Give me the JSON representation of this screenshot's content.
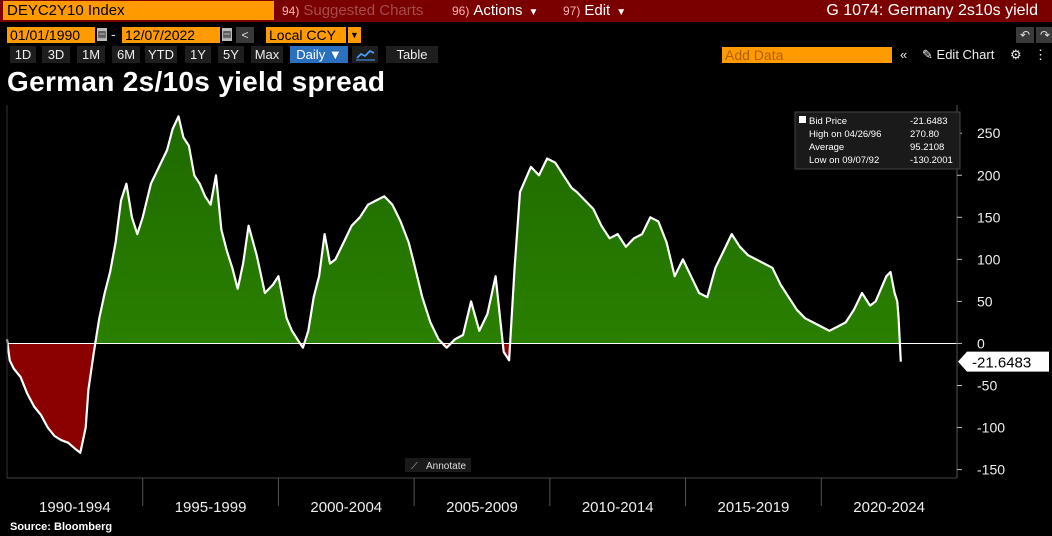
{
  "toolbar": {
    "security": "DEYC2Y10 Index",
    "suggested_num": "94)",
    "suggested_label": "Suggested Charts",
    "actions_num": "96)",
    "actions_label": "Actions",
    "edit_num": "97)",
    "edit_label": "Edit",
    "page_title": "G 1074: Germany 2s10s yield",
    "start_date": "01/01/1990",
    "end_date": "12/07/2022",
    "currency": "Local CCY",
    "ranges": [
      "1D",
      "3D",
      "1M",
      "6M",
      "YTD",
      "1Y",
      "5Y",
      "Max"
    ],
    "frequency": "Daily",
    "table_label": "Table",
    "add_data_placeholder": "Add Data",
    "edit_chart_label": "Edit Chart"
  },
  "title": "German 2s/10s yield spread",
  "source": "Source: Bloomberg",
  "annotate_label": "Annotate",
  "colors": {
    "positive_fill": "#2f8a00",
    "negative_fill": "#8b0000",
    "line": "#ffffff",
    "toolbar_orange": "#ff9b00",
    "toolbar_red": "#7a0000"
  },
  "legend": {
    "rows": [
      {
        "label": "Bid Price",
        "value": "-21.6483"
      },
      {
        "label": "High on 04/26/96",
        "value": "270.80"
      },
      {
        "label": "Average",
        "value": "95.2108"
      },
      {
        "label": "Low on 09/07/92",
        "value": "-130.2001"
      }
    ]
  },
  "chart_data": {
    "type": "area",
    "title": "German 2s/10s yield spread",
    "series": [
      {
        "name": "Bid Price",
        "x": [
          1990.0,
          1990.1,
          1990.25,
          1990.5,
          1990.75,
          1991.0,
          1991.25,
          1991.5,
          1991.75,
          1992.0,
          1992.25,
          1992.5,
          1992.7,
          1992.9,
          1993.0,
          1993.2,
          1993.4,
          1993.6,
          1993.8,
          1994.0,
          1994.2,
          1994.4,
          1994.6,
          1994.8,
          1995.0,
          1995.3,
          1995.6,
          1995.9,
          1996.1,
          1996.32,
          1996.5,
          1996.7,
          1996.9,
          1997.1,
          1997.3,
          1997.5,
          1997.7,
          1997.9,
          1998.1,
          1998.3,
          1998.5,
          1998.7,
          1998.9,
          1999.2,
          1999.5,
          1999.8,
          2000.0,
          2000.3,
          2000.5,
          2000.7,
          2000.9,
          2001.1,
          2001.3,
          2001.5,
          2001.7,
          2001.9,
          2002.1,
          2002.4,
          2002.7,
          2003.0,
          2003.3,
          2003.6,
          2003.9,
          2004.2,
          2004.5,
          2004.8,
          2005.0,
          2005.3,
          2005.6,
          2005.9,
          2006.2,
          2006.5,
          2006.8,
          2007.1,
          2007.4,
          2007.7,
          2008.0,
          2008.3,
          2008.5,
          2008.7,
          2008.9,
          2009.1,
          2009.3,
          2009.6,
          2009.9,
          2010.2,
          2010.5,
          2010.8,
          2011.0,
          2011.3,
          2011.6,
          2011.9,
          2012.2,
          2012.5,
          2012.8,
          2013.1,
          2013.4,
          2013.7,
          2014.0,
          2014.3,
          2014.6,
          2014.9,
          2015.2,
          2015.5,
          2015.8,
          2016.1,
          2016.4,
          2016.7,
          2017.0,
          2017.3,
          2017.6,
          2017.9,
          2018.2,
          2018.5,
          2018.8,
          2019.1,
          2019.4,
          2019.7,
          2020.0,
          2020.3,
          2020.6,
          2020.9,
          2021.2,
          2021.5,
          2021.8,
          2022.0,
          2022.2,
          2022.4,
          2022.55,
          2022.7,
          2022.8,
          2022.85,
          2022.93
        ],
        "values": [
          5,
          -20,
          -30,
          -40,
          -60,
          -75,
          -85,
          -100,
          -110,
          -115,
          -118,
          -125,
          -130,
          -100,
          -55,
          -10,
          30,
          60,
          85,
          120,
          170,
          190,
          150,
          130,
          150,
          190,
          210,
          230,
          255,
          270,
          245,
          235,
          200,
          190,
          175,
          165,
          200,
          135,
          110,
          90,
          65,
          95,
          140,
          105,
          60,
          70,
          80,
          30,
          15,
          5,
          -5,
          15,
          55,
          80,
          130,
          95,
          100,
          120,
          140,
          150,
          165,
          170,
          175,
          165,
          145,
          120,
          95,
          55,
          25,
          5,
          -5,
          5,
          10,
          50,
          15,
          35,
          80,
          -10,
          -20,
          90,
          180,
          195,
          210,
          200,
          220,
          215,
          200,
          185,
          180,
          170,
          160,
          140,
          125,
          130,
          115,
          125,
          130,
          150,
          145,
          120,
          80,
          100,
          80,
          60,
          55,
          90,
          110,
          130,
          115,
          105,
          100,
          95,
          90,
          70,
          55,
          40,
          30,
          25,
          20,
          15,
          20,
          25,
          40,
          60,
          45,
          50,
          65,
          80,
          85,
          60,
          50,
          30,
          -21.6483
        ]
      }
    ],
    "xlabel": "",
    "ylabel": "",
    "categories": [
      "1990-1994",
      "1995-1999",
      "2000-2004",
      "2005-2009",
      "2010-2014",
      "2015-2019",
      "2020-2024"
    ],
    "xlim": [
      1990,
      2025
    ],
    "ylim": [
      -160,
      280
    ],
    "yticks": [
      250,
      200,
      150,
      100,
      50,
      0,
      -50,
      -100,
      -150
    ],
    "last_value_label": "-21.6483",
    "legend_position": "top-right",
    "grid": false
  }
}
